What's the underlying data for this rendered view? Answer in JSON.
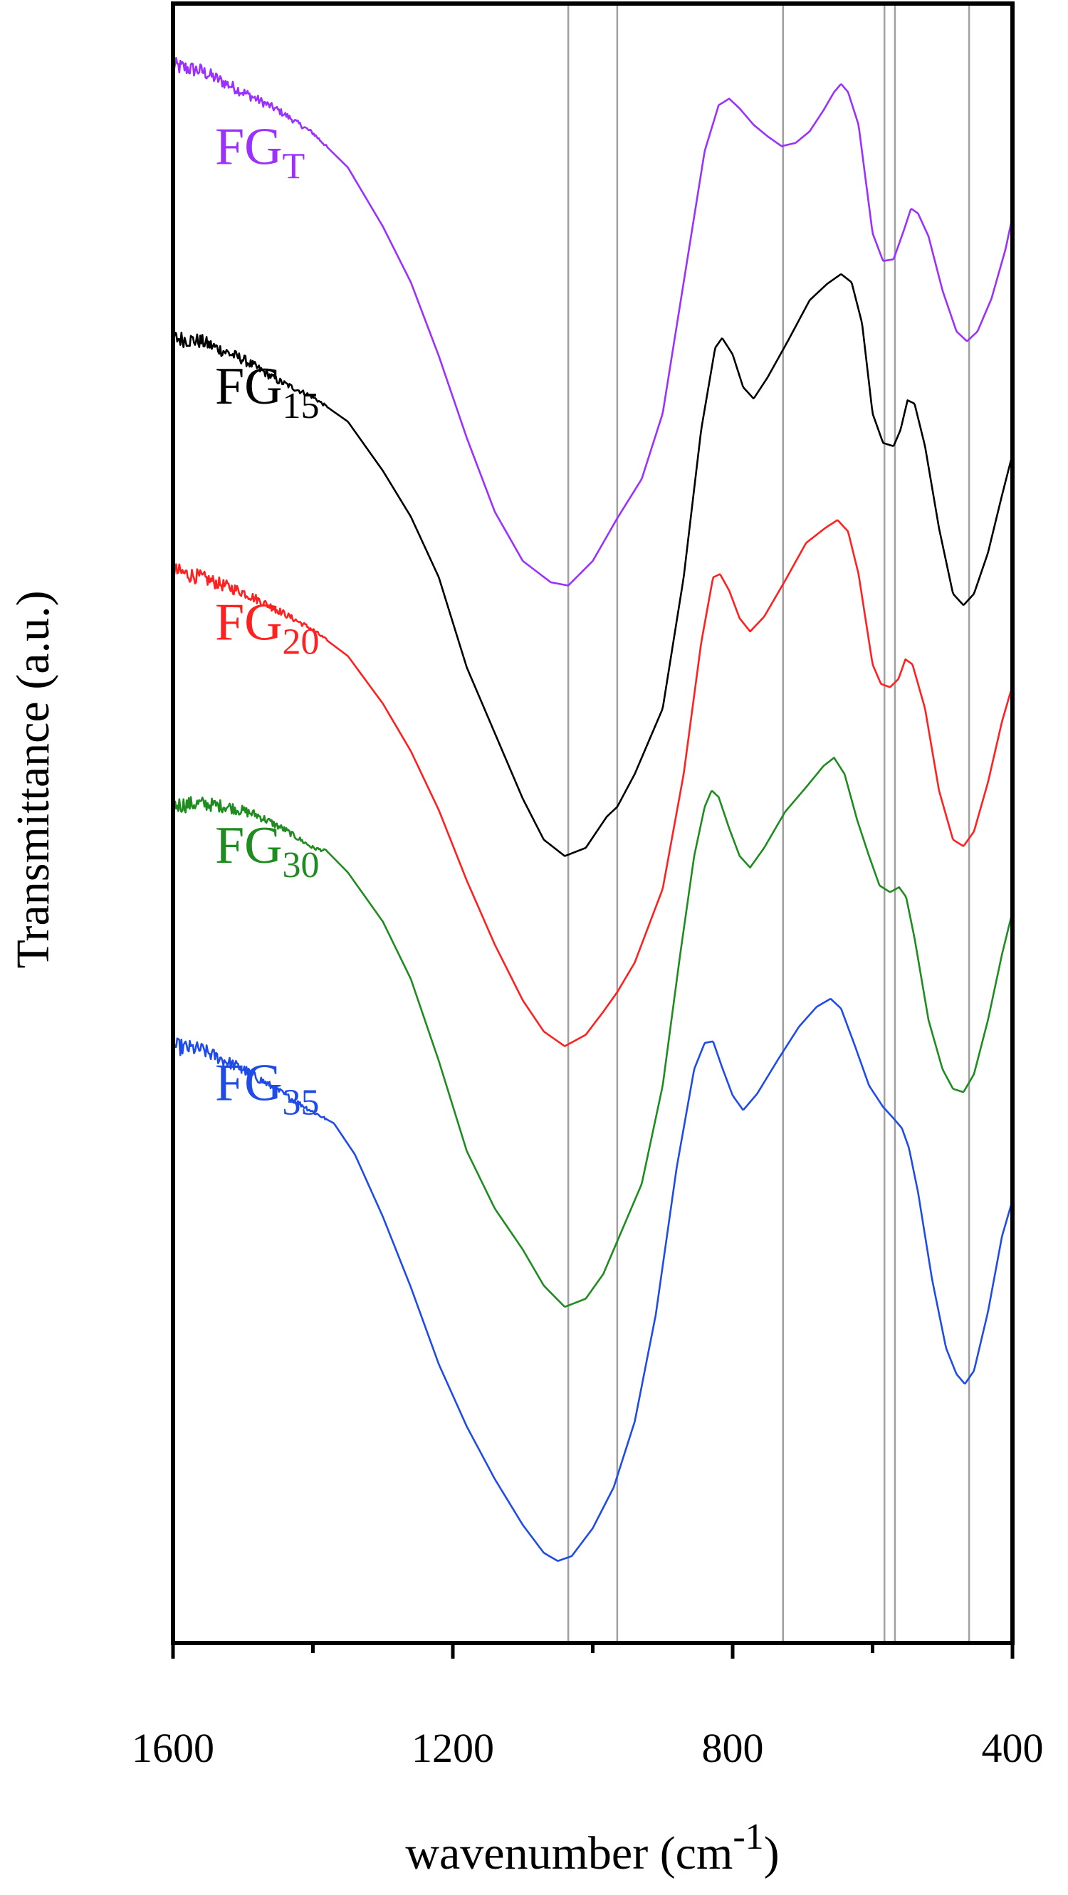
{
  "chart_data": {
    "type": "line",
    "title": "",
    "xlabel": "wavenumber (cm",
    "xlabel_superscript": "-1",
    "xlabel_suffix": ")",
    "ylabel": "Transmittance (a.u.)",
    "xlim": [
      1600,
      400
    ],
    "x_reversed": true,
    "x_ticks": [
      1600,
      1200,
      800,
      400
    ],
    "x_minor_ticks": [
      1400,
      1000,
      600
    ],
    "y_ticks": "none",
    "grid": false,
    "reference_lines": [
      1035,
      965,
      728,
      583,
      568,
      462
    ],
    "reference_line_color": "#a0a0a0",
    "ylim": [
      0,
      100
    ],
    "noise_region": [
      1600,
      1380
    ],
    "series": [
      {
        "name": "FG",
        "sub": "T",
        "color": "#9b30ff",
        "label_anchor": [
          1540,
          90.2
        ],
        "points": [
          [
            1600,
            96.2
          ],
          [
            1560,
            95.9
          ],
          [
            1500,
            94.6
          ],
          [
            1450,
            93.5
          ],
          [
            1400,
            92.1
          ],
          [
            1350,
            90.0
          ],
          [
            1300,
            86.4
          ],
          [
            1260,
            83.0
          ],
          [
            1220,
            78.5
          ],
          [
            1180,
            73.5
          ],
          [
            1140,
            69.0
          ],
          [
            1100,
            66.0
          ],
          [
            1060,
            64.7
          ],
          [
            1035,
            64.5
          ],
          [
            1000,
            66.0
          ],
          [
            965,
            68.6
          ],
          [
            930,
            71.0
          ],
          [
            900,
            75.0
          ],
          [
            870,
            83.0
          ],
          [
            840,
            91.0
          ],
          [
            820,
            93.8
          ],
          [
            805,
            94.2
          ],
          [
            790,
            93.6
          ],
          [
            770,
            92.6
          ],
          [
            750,
            91.9
          ],
          [
            730,
            91.3
          ],
          [
            710,
            91.5
          ],
          [
            690,
            92.2
          ],
          [
            670,
            93.5
          ],
          [
            655,
            94.6
          ],
          [
            645,
            95.1
          ],
          [
            635,
            94.6
          ],
          [
            620,
            92.6
          ],
          [
            600,
            86.0
          ],
          [
            585,
            84.3
          ],
          [
            570,
            84.4
          ],
          [
            555,
            86.2
          ],
          [
            545,
            87.5
          ],
          [
            535,
            87.2
          ],
          [
            520,
            85.8
          ],
          [
            500,
            82.5
          ],
          [
            480,
            80.0
          ],
          [
            465,
            79.4
          ],
          [
            450,
            80.0
          ],
          [
            430,
            82.0
          ],
          [
            410,
            85.0
          ],
          [
            400,
            87.0
          ]
        ]
      },
      {
        "name": "FG",
        "sub": "15",
        "color": "#000000",
        "label_anchor": [
          1540,
          75.6
        ],
        "points": [
          [
            1600,
            79.6
          ],
          [
            1560,
            79.4
          ],
          [
            1500,
            78.3
          ],
          [
            1450,
            77.0
          ],
          [
            1400,
            76.0
          ],
          [
            1350,
            74.5
          ],
          [
            1300,
            71.5
          ],
          [
            1260,
            68.7
          ],
          [
            1220,
            65.0
          ],
          [
            1180,
            59.5
          ],
          [
            1140,
            55.5
          ],
          [
            1100,
            51.5
          ],
          [
            1070,
            49.0
          ],
          [
            1040,
            48.0
          ],
          [
            1010,
            48.5
          ],
          [
            980,
            50.4
          ],
          [
            965,
            51.0
          ],
          [
            940,
            53.0
          ],
          [
            900,
            57.0
          ],
          [
            870,
            65.0
          ],
          [
            845,
            74.0
          ],
          [
            825,
            79.0
          ],
          [
            815,
            79.6
          ],
          [
            800,
            78.6
          ],
          [
            785,
            76.6
          ],
          [
            770,
            75.9
          ],
          [
            750,
            77.2
          ],
          [
            720,
            79.5
          ],
          [
            690,
            81.9
          ],
          [
            665,
            82.9
          ],
          [
            645,
            83.5
          ],
          [
            630,
            83.0
          ],
          [
            615,
            80.5
          ],
          [
            600,
            75.0
          ],
          [
            585,
            73.2
          ],
          [
            570,
            73.0
          ],
          [
            560,
            74.0
          ],
          [
            550,
            75.8
          ],
          [
            540,
            75.6
          ],
          [
            525,
            73.0
          ],
          [
            505,
            68.0
          ],
          [
            485,
            64.0
          ],
          [
            470,
            63.3
          ],
          [
            455,
            64.0
          ],
          [
            435,
            66.5
          ],
          [
            415,
            70.0
          ],
          [
            400,
            72.5
          ]
        ]
      },
      {
        "name": "FG",
        "sub": "20",
        "color": "#ff2020",
        "label_anchor": [
          1540,
          61.2
        ],
        "points": [
          [
            1600,
            65.4
          ],
          [
            1560,
            65.0
          ],
          [
            1500,
            64.1
          ],
          [
            1450,
            63.0
          ],
          [
            1400,
            61.8
          ],
          [
            1350,
            60.2
          ],
          [
            1300,
            57.3
          ],
          [
            1260,
            54.4
          ],
          [
            1220,
            50.8
          ],
          [
            1180,
            46.5
          ],
          [
            1140,
            42.6
          ],
          [
            1100,
            39.2
          ],
          [
            1070,
            37.3
          ],
          [
            1040,
            36.4
          ],
          [
            1010,
            37.1
          ],
          [
            985,
            38.5
          ],
          [
            965,
            39.7
          ],
          [
            940,
            41.5
          ],
          [
            900,
            46.0
          ],
          [
            870,
            53.0
          ],
          [
            845,
            61.0
          ],
          [
            828,
            65.0
          ],
          [
            818,
            65.2
          ],
          [
            805,
            64.2
          ],
          [
            790,
            62.5
          ],
          [
            775,
            61.7
          ],
          [
            755,
            62.6
          ],
          [
            725,
            64.8
          ],
          [
            695,
            67.1
          ],
          [
            668,
            68.0
          ],
          [
            650,
            68.5
          ],
          [
            635,
            67.8
          ],
          [
            620,
            65.2
          ],
          [
            600,
            59.7
          ],
          [
            588,
            58.5
          ],
          [
            575,
            58.3
          ],
          [
            563,
            58.8
          ],
          [
            553,
            60.0
          ],
          [
            543,
            59.7
          ],
          [
            525,
            57.0
          ],
          [
            505,
            52.0
          ],
          [
            485,
            49.0
          ],
          [
            470,
            48.6
          ],
          [
            455,
            49.5
          ],
          [
            435,
            52.5
          ],
          [
            415,
            56.2
          ],
          [
            400,
            58.4
          ]
        ]
      },
      {
        "name": "FG",
        "sub": "30",
        "color": "#1f8c1f",
        "label_anchor": [
          1540,
          47.6
        ],
        "points": [
          [
            1600,
            51.1
          ],
          [
            1560,
            51.2
          ],
          [
            1520,
            51.0
          ],
          [
            1480,
            50.5
          ],
          [
            1440,
            49.6
          ],
          [
            1400,
            48.5
          ],
          [
            1380,
            48.3
          ],
          [
            1350,
            47.0
          ],
          [
            1300,
            44.0
          ],
          [
            1260,
            40.5
          ],
          [
            1220,
            35.5
          ],
          [
            1180,
            30.0
          ],
          [
            1140,
            26.5
          ],
          [
            1100,
            24.0
          ],
          [
            1070,
            21.8
          ],
          [
            1040,
            20.5
          ],
          [
            1010,
            21.0
          ],
          [
            985,
            22.5
          ],
          [
            960,
            25.0
          ],
          [
            930,
            28.0
          ],
          [
            900,
            34.0
          ],
          [
            875,
            42.0
          ],
          [
            855,
            48.0
          ],
          [
            840,
            51.0
          ],
          [
            830,
            52.0
          ],
          [
            820,
            51.6
          ],
          [
            805,
            49.7
          ],
          [
            790,
            48.0
          ],
          [
            775,
            47.3
          ],
          [
            755,
            48.5
          ],
          [
            725,
            50.7
          ],
          [
            695,
            52.2
          ],
          [
            670,
            53.5
          ],
          [
            655,
            54.0
          ],
          [
            640,
            53.0
          ],
          [
            622,
            50.2
          ],
          [
            605,
            48.0
          ],
          [
            590,
            46.2
          ],
          [
            575,
            45.8
          ],
          [
            562,
            46.1
          ],
          [
            552,
            45.5
          ],
          [
            540,
            43.0
          ],
          [
            520,
            38.0
          ],
          [
            500,
            35.0
          ],
          [
            485,
            33.8
          ],
          [
            470,
            33.6
          ],
          [
            455,
            34.7
          ],
          [
            435,
            38.0
          ],
          [
            415,
            42.0
          ],
          [
            400,
            44.6
          ]
        ]
      },
      {
        "name": "FG",
        "sub": "35",
        "color": "#1f4ce8",
        "label_anchor": [
          1540,
          33.1
        ],
        "points": [
          [
            1600,
            36.4
          ],
          [
            1560,
            36.2
          ],
          [
            1500,
            35.0
          ],
          [
            1450,
            33.7
          ],
          [
            1400,
            32.4
          ],
          [
            1370,
            31.7
          ],
          [
            1340,
            29.8
          ],
          [
            1300,
            26.0
          ],
          [
            1260,
            21.7
          ],
          [
            1220,
            17.0
          ],
          [
            1180,
            13.2
          ],
          [
            1140,
            10.0
          ],
          [
            1100,
            7.2
          ],
          [
            1070,
            5.5
          ],
          [
            1050,
            5.0
          ],
          [
            1030,
            5.3
          ],
          [
            1000,
            7.0
          ],
          [
            970,
            9.5
          ],
          [
            940,
            13.5
          ],
          [
            910,
            20.0
          ],
          [
            880,
            29.0
          ],
          [
            855,
            35.0
          ],
          [
            840,
            36.6
          ],
          [
            828,
            36.7
          ],
          [
            815,
            35.1
          ],
          [
            800,
            33.4
          ],
          [
            785,
            32.5
          ],
          [
            765,
            33.5
          ],
          [
            735,
            35.6
          ],
          [
            705,
            37.6
          ],
          [
            680,
            38.8
          ],
          [
            660,
            39.3
          ],
          [
            645,
            38.7
          ],
          [
            625,
            36.4
          ],
          [
            605,
            34.0
          ],
          [
            585,
            32.7
          ],
          [
            570,
            32.0
          ],
          [
            558,
            31.4
          ],
          [
            548,
            30.2
          ],
          [
            535,
            27.5
          ],
          [
            515,
            22.2
          ],
          [
            495,
            18.0
          ],
          [
            480,
            16.4
          ],
          [
            468,
            15.8
          ],
          [
            455,
            16.6
          ],
          [
            435,
            20.2
          ],
          [
            415,
            24.8
          ],
          [
            400,
            27.0
          ]
        ]
      }
    ]
  }
}
